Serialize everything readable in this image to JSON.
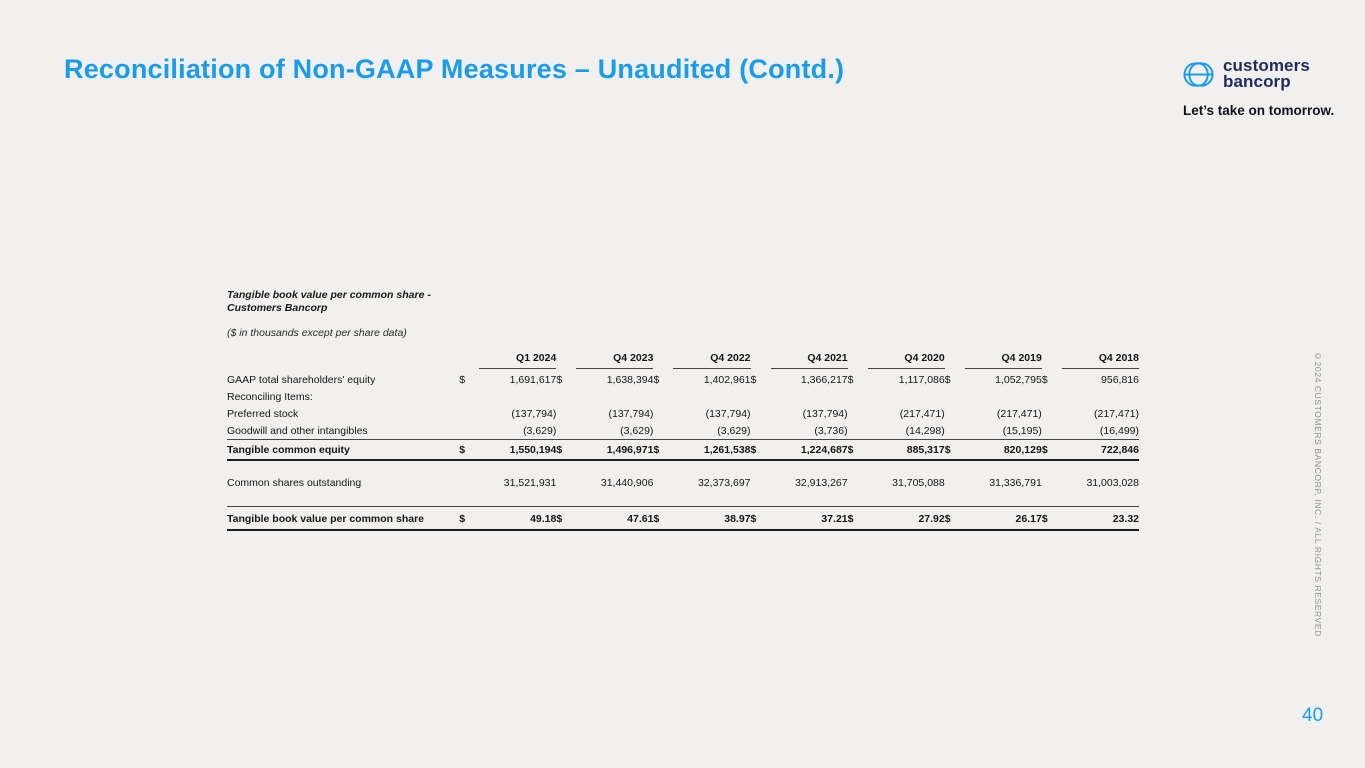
{
  "slide": {
    "title": "Reconciliation of Non-GAAP Measures – Unaudited (Contd.)",
    "page_number": "40",
    "copyright_vertical": "©2024 CUSTOMERS BANCORP, INC. / ALL RIGHTS RESERVED",
    "background_color": "#f1f0ee",
    "accent_color": "#1b9ce8"
  },
  "logo": {
    "icon": "customers-bancorp-mark",
    "line1": "customers",
    "line2": "bancorp",
    "tagline": "Let’s take on tomorrow.",
    "navy_color": "#1d2b5f",
    "blue_color": "#1b9ce8"
  },
  "table": {
    "title_line1": "Tangible book value per common share -",
    "title_line2": "Customers Bancorp",
    "subtitle": "($ in thousands except per share data)",
    "dollar_sign": "$",
    "columns": [
      "Q1 2024",
      "Q4 2023",
      "Q4 2022",
      "Q4 2021",
      "Q4 2020",
      "Q4 2019",
      "Q4 2018"
    ],
    "rows": [
      {
        "label": "GAAP total shareholders' equity",
        "dollar": true,
        "style": "normal",
        "values": [
          "1,691,617",
          "1,638,394",
          "1,402,961",
          "1,366,217",
          "1,117,086",
          "1,052,795",
          "956,816"
        ]
      },
      {
        "label": "Reconciling Items:",
        "dollar": false,
        "style": "normal",
        "values": [
          "",
          "",
          "",
          "",
          "",
          "",
          ""
        ]
      },
      {
        "label": "Preferred stock",
        "dollar": false,
        "style": "normal",
        "values": [
          "(137,794)",
          "(137,794)",
          "(137,794)",
          "(137,794)",
          "(217,471)",
          "(217,471)",
          "(217,471)"
        ]
      },
      {
        "label": "Goodwill and other intangibles",
        "dollar": false,
        "style": "underline",
        "values": [
          "(3,629)",
          "(3,629)",
          "(3,629)",
          "(3,736)",
          "(14,298)",
          "(15,195)",
          "(16,499)"
        ]
      },
      {
        "label": "Tangible common equity",
        "dollar": true,
        "style": "total",
        "values": [
          "1,550,194",
          "1,496,971",
          "1,261,538",
          "1,224,687",
          "885,317",
          "820,129",
          "722,846"
        ]
      },
      {
        "spacer": true
      },
      {
        "label": "Common shares outstanding",
        "dollar": false,
        "style": "normal",
        "values": [
          "31,521,931",
          "31,440,906",
          "32,373,697",
          "32,913,267",
          "31,705,088",
          "31,336,791",
          "31,003,028"
        ]
      },
      {
        "spacer": true
      },
      {
        "label": "Tangible book value per common share",
        "dollar": true,
        "style": "grand",
        "values": [
          "49.18",
          "47.61",
          "38.97",
          "37.21",
          "27.92",
          "26.17",
          "23.32"
        ]
      }
    ]
  }
}
